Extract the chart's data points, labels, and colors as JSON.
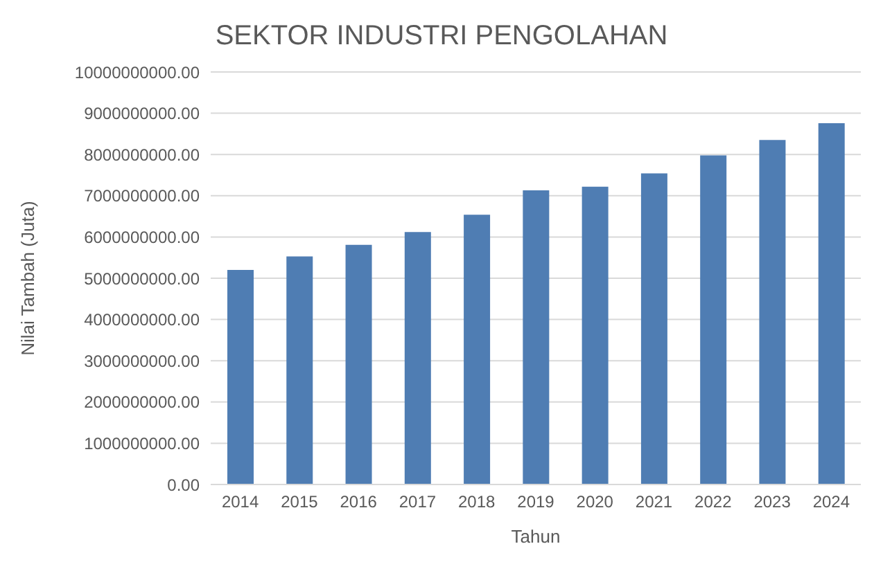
{
  "chart_data": {
    "type": "bar",
    "title": "SEKTOR INDUSTRI PENGOLAHAN",
    "xlabel": "Tahun",
    "ylabel": "Nilai Tambah (Juta)",
    "categories": [
      "2014",
      "2015",
      "2016",
      "2017",
      "2018",
      "2019",
      "2020",
      "2021",
      "2022",
      "2023",
      "2024"
    ],
    "values": [
      5200000000,
      5530000000,
      5810000000,
      6120000000,
      6540000000,
      7130000000,
      7220000000,
      7540000000,
      7980000000,
      8350000000,
      8760000000
    ],
    "color": "#4f7db3",
    "ylim": [
      0,
      10000000000
    ],
    "yticks": [
      {
        "value": 0,
        "label": "0.00"
      },
      {
        "value": 1000000000,
        "label": "1000000000.00"
      },
      {
        "value": 2000000000,
        "label": "2000000000.00"
      },
      {
        "value": 3000000000,
        "label": "3000000000.00"
      },
      {
        "value": 4000000000,
        "label": "4000000000.00"
      },
      {
        "value": 5000000000,
        "label": "5000000000.00"
      },
      {
        "value": 6000000000,
        "label": "6000000000.00"
      },
      {
        "value": 7000000000,
        "label": "7000000000.00"
      },
      {
        "value": 8000000000,
        "label": "8000000000.00"
      },
      {
        "value": 9000000000,
        "label": "9000000000.00"
      },
      {
        "value": 10000000000,
        "label": "10000000000.00"
      }
    ],
    "grid": "y",
    "legend": false
  }
}
